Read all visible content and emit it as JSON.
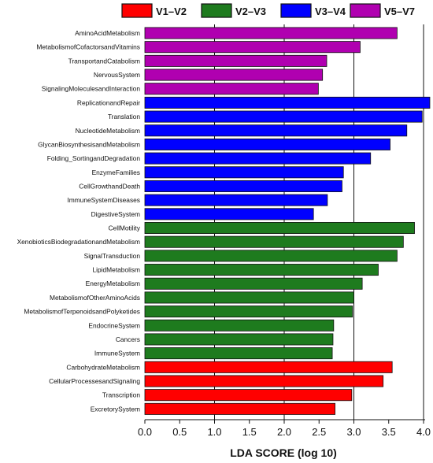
{
  "chart_data": {
    "type": "bar",
    "orientation": "horizontal",
    "xlabel": "LDA SCORE (log 10)",
    "xlim": [
      0.0,
      4.05
    ],
    "xticks": [
      "0.0",
      "0.5",
      "1.0",
      "1.5",
      "2.0",
      "2.5",
      "3.0",
      "3.5",
      "4.0"
    ],
    "vertical_gridlines_at": [
      1.0,
      2.0,
      3.0,
      4.0
    ],
    "legend_position": "top",
    "groups": [
      {
        "name": "V1–V2",
        "color": "#ff0000"
      },
      {
        "name": "V2–V3",
        "color": "#1e7b1e"
      },
      {
        "name": "V3–V4",
        "color": "#0000ff"
      },
      {
        "name": "V5–V7",
        "color": "#b000b0"
      }
    ],
    "bars": [
      {
        "label": "AminoAcidMetabolism",
        "value": 3.62,
        "group": "V5–V7"
      },
      {
        "label": "MetabolismofCofactorsandVitamins",
        "value": 3.09,
        "group": "V5–V7"
      },
      {
        "label": "TransportandCatabolism",
        "value": 2.61,
        "group": "V5–V7"
      },
      {
        "label": "NervousSystem",
        "value": 2.55,
        "group": "V5–V7"
      },
      {
        "label": "SignalingMoleculesandInteraction",
        "value": 2.49,
        "group": "V5–V7"
      },
      {
        "label": "ReplicationandRepair",
        "value": 4.09,
        "group": "V3–V4"
      },
      {
        "label": "Translation",
        "value": 3.98,
        "group": "V3–V4"
      },
      {
        "label": "NucleotideMetabolism",
        "value": 3.76,
        "group": "V3–V4"
      },
      {
        "label": "GlycanBiosynthesisandMetabolism",
        "value": 3.52,
        "group": "V3–V4"
      },
      {
        "label": "Folding_SortingandDegradation",
        "value": 3.24,
        "group": "V3–V4"
      },
      {
        "label": "EnzymeFamilies",
        "value": 2.85,
        "group": "V3–V4"
      },
      {
        "label": "CellGrowthandDeath",
        "value": 2.83,
        "group": "V3–V4"
      },
      {
        "label": "ImmuneSystemDiseases",
        "value": 2.62,
        "group": "V3–V4"
      },
      {
        "label": "DigestiveSystem",
        "value": 2.42,
        "group": "V3–V4"
      },
      {
        "label": "CellMotility",
        "value": 3.87,
        "group": "V2–V3"
      },
      {
        "label": "XenobioticsBiodegradationandMetabolism",
        "value": 3.71,
        "group": "V2–V3"
      },
      {
        "label": "SignalTransduction",
        "value": 3.62,
        "group": "V2–V3"
      },
      {
        "label": "LipidMetabolism",
        "value": 3.35,
        "group": "V2–V3"
      },
      {
        "label": "EnergyMetabolism",
        "value": 3.12,
        "group": "V2–V3"
      },
      {
        "label": "MetabolismofOtherAminoAcids",
        "value": 3.0,
        "group": "V2–V3"
      },
      {
        "label": "MetabolismofTerpenoidsandPolyketides",
        "value": 2.98,
        "group": "V2–V3"
      },
      {
        "label": "EndocrineSystem",
        "value": 2.71,
        "group": "V2–V3"
      },
      {
        "label": "Cancers",
        "value": 2.7,
        "group": "V2–V3"
      },
      {
        "label": "ImmuneSystem",
        "value": 2.69,
        "group": "V2–V3"
      },
      {
        "label": "CarbohydrateMetabolism",
        "value": 3.55,
        "group": "V1–V2"
      },
      {
        "label": "CellularProcessesandSignaling",
        "value": 3.42,
        "group": "V1–V2"
      },
      {
        "label": "Transcription",
        "value": 2.97,
        "group": "V1–V2"
      },
      {
        "label": "ExcretorySystem",
        "value": 2.73,
        "group": "V1–V2"
      }
    ]
  }
}
